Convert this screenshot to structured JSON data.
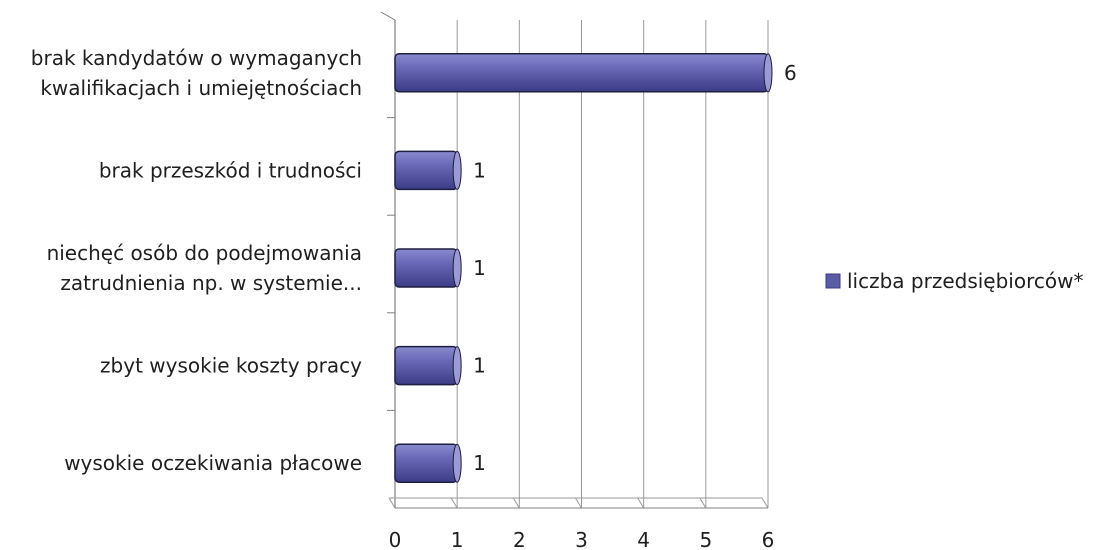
{
  "chart_data": {
    "type": "bar",
    "orientation": "horizontal",
    "categories": [
      "brak kandydatów o wymaganych kwalifikacjach i umiejętnościach",
      "brak przeszkód i trudności",
      "niechęć osób do podejmowania zatrudnienia np. w systemie...",
      "zbyt wysokie koszty pracy",
      "wysokie oczekiwania płacowe"
    ],
    "category_lines": [
      [
        "brak kandydatów o wymaganych",
        "kwalifikacjach i umiejętnościach"
      ],
      [
        "brak przeszkód i trudności"
      ],
      [
        "niechęć osób do podejmowania",
        "zatrudnienia np. w systemie..."
      ],
      [
        "zbyt wysokie koszty pracy"
      ],
      [
        "wysokie oczekiwania płacowe"
      ]
    ],
    "series": [
      {
        "name": "liczba przedsiębiorców*",
        "values": [
          6,
          1,
          1,
          1,
          1
        ]
      }
    ],
    "xlim": [
      0,
      6
    ],
    "xticks": [
      "0",
      "1",
      "2",
      "3",
      "4",
      "5",
      "6"
    ],
    "grid": "vertical",
    "legend_position": "right",
    "bar_color": "#5c5ca6",
    "title": "",
    "xlabel": "",
    "ylabel": ""
  }
}
